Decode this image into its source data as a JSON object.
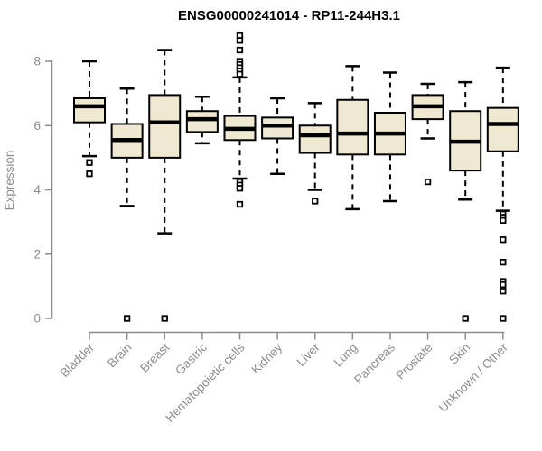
{
  "chart_data": {
    "type": "boxplot",
    "title": "ENSG00000241014 - RP11-244H3.1",
    "ylabel": "Expression",
    "xlabel": "",
    "ylim": [
      0,
      8
    ],
    "yticks": [
      0,
      2,
      4,
      6,
      8
    ],
    "grid": false,
    "legend": "none",
    "categories": [
      "Bladder",
      "Brain",
      "Breast",
      "Gastric",
      "Hematopoietic cells",
      "Kidney",
      "Liver",
      "Lung",
      "Pancreas",
      "Prostate",
      "Skin",
      "Unknown / Other"
    ],
    "boxes": [
      {
        "category": "Bladder",
        "whisker_low": 5.05,
        "q1": 6.1,
        "median": 6.6,
        "q3": 6.85,
        "whisker_high": 8.0,
        "outliers": [
          4.85,
          4.5
        ]
      },
      {
        "category": "Brain",
        "whisker_low": 3.5,
        "q1": 5.0,
        "median": 5.55,
        "q3": 6.05,
        "whisker_high": 7.15,
        "outliers": [
          0
        ]
      },
      {
        "category": "Breast",
        "whisker_low": 2.65,
        "q1": 5.0,
        "median": 6.1,
        "q3": 6.95,
        "whisker_high": 8.35,
        "outliers": [
          0
        ]
      },
      {
        "category": "Gastric",
        "whisker_low": 5.45,
        "q1": 5.8,
        "median": 6.2,
        "q3": 6.45,
        "whisker_high": 6.9,
        "outliers": []
      },
      {
        "category": "Hematopoietic cells",
        "whisker_low": 4.35,
        "q1": 5.55,
        "median": 5.9,
        "q3": 6.3,
        "whisker_high": 7.5,
        "outliers": [
          8.8,
          8.65,
          8.35,
          8.0,
          7.9,
          7.8,
          7.7,
          7.6,
          4.25,
          4.15,
          4.05,
          3.55
        ]
      },
      {
        "category": "Kidney",
        "whisker_low": 4.5,
        "q1": 5.6,
        "median": 6.0,
        "q3": 6.25,
        "whisker_high": 6.85,
        "outliers": []
      },
      {
        "category": "Liver",
        "whisker_low": 4.0,
        "q1": 5.15,
        "median": 5.7,
        "q3": 6.0,
        "whisker_high": 6.7,
        "outliers": [
          3.65
        ]
      },
      {
        "category": "Lung",
        "whisker_low": 3.4,
        "q1": 5.1,
        "median": 5.75,
        "q3": 6.8,
        "whisker_high": 7.85,
        "outliers": []
      },
      {
        "category": "Pancreas",
        "whisker_low": 3.65,
        "q1": 5.1,
        "median": 5.75,
        "q3": 6.4,
        "whisker_high": 7.65,
        "outliers": []
      },
      {
        "category": "Prostate",
        "whisker_low": 5.6,
        "q1": 6.2,
        "median": 6.6,
        "q3": 6.95,
        "whisker_high": 7.3,
        "outliers": [
          4.25
        ]
      },
      {
        "category": "Skin",
        "whisker_low": 3.7,
        "q1": 4.6,
        "median": 5.5,
        "q3": 6.45,
        "whisker_high": 7.35,
        "outliers": [
          0
        ]
      },
      {
        "category": "Unknown / Other",
        "whisker_low": 3.35,
        "q1": 5.2,
        "median": 6.05,
        "q3": 6.55,
        "whisker_high": 7.8,
        "outliers": [
          3.25,
          3.15,
          3.05,
          2.45,
          1.75,
          1.15,
          1.05,
          0.85,
          0
        ]
      }
    ],
    "colors": {
      "box_fill": "#EFE9D2",
      "box_stroke": "#000000",
      "median": "#000000",
      "whisker": "#000000",
      "outlier_fill": "#FFFFFF",
      "outlier_stroke": "#000000",
      "axis": "#8D8D8D",
      "tick_label": "#8D8D8D",
      "title": "#000000",
      "background": "#FFFFFF"
    }
  }
}
